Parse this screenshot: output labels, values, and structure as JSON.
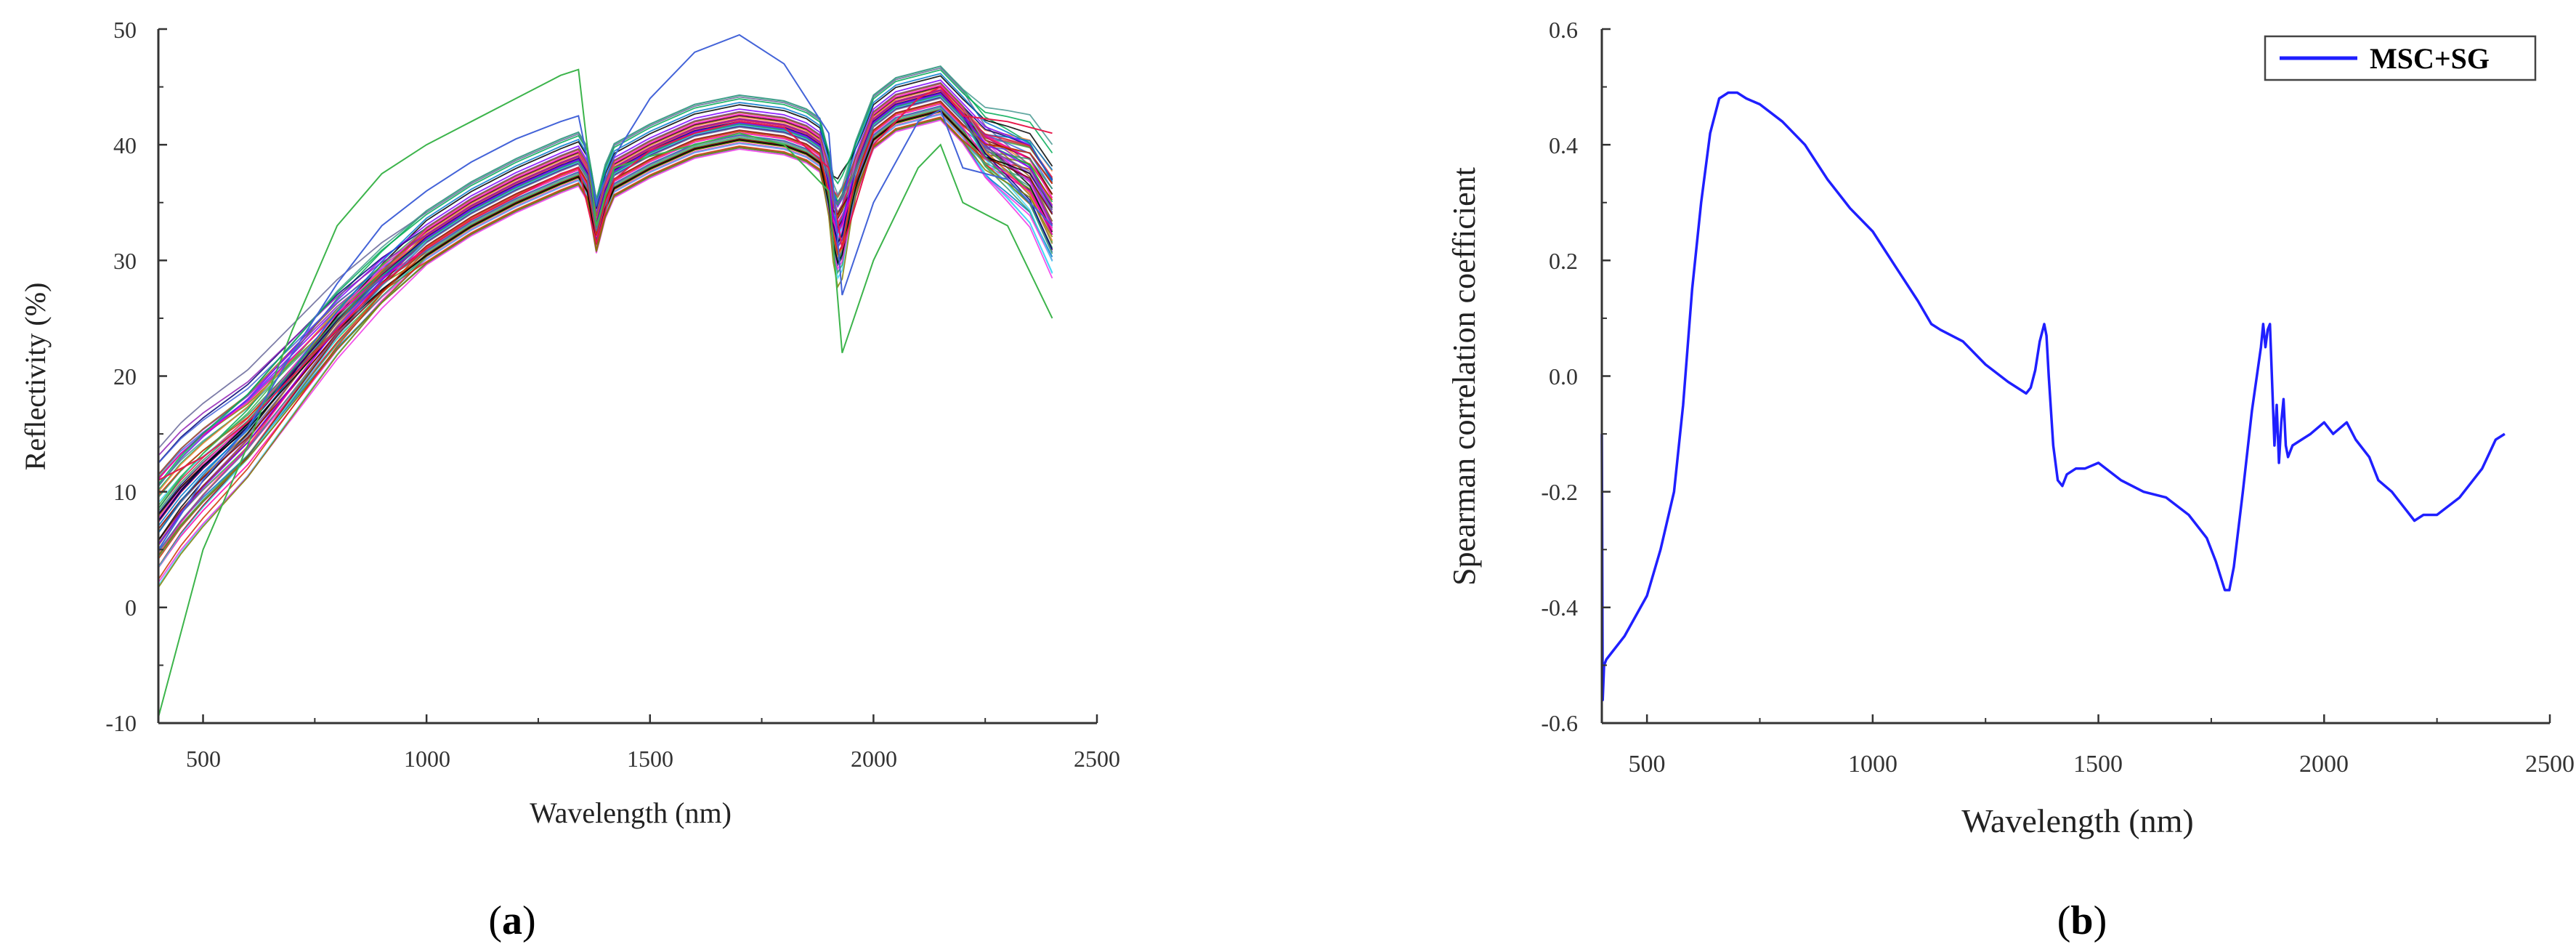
{
  "chart_data": [
    {
      "panel": "a",
      "type": "line",
      "title": "",
      "xlabel": "Wavelength (nm)",
      "ylabel": "Reflectivity (%)",
      "xlim": [
        400,
        2500
      ],
      "ylim": [
        -10,
        50
      ],
      "xticks": [
        500,
        1000,
        1500,
        2000,
        2500
      ],
      "yticks": [
        -10,
        0,
        10,
        20,
        30,
        40,
        50
      ],
      "grid": false,
      "legend": "none",
      "series_count": 60,
      "base_curve": {
        "x": [
          400,
          450,
          500,
          600,
          700,
          800,
          900,
          1000,
          1100,
          1200,
          1300,
          1340,
          1360,
          1380,
          1400,
          1420,
          1500,
          1600,
          1700,
          1800,
          1850,
          1880,
          1900,
          1915,
          1930,
          1960,
          2000,
          2050,
          2100,
          2150,
          2200,
          2250,
          2300,
          2350,
          2400
        ],
        "y": [
          8,
          10.5,
          12.5,
          16,
          20.5,
          25,
          28.8,
          32,
          34.5,
          36.5,
          38.2,
          38.8,
          37.5,
          33,
          36,
          37.8,
          39.5,
          41.2,
          42,
          41.5,
          40.8,
          40,
          37,
          33,
          34,
          38,
          42,
          43.5,
          44,
          44.5,
          42.5,
          41,
          40.8,
          40.5,
          38
        ]
      },
      "example_spectra": [
        {
          "name": "",
          "x": [
            400,
            500,
            600,
            700,
            800,
            900,
            1000,
            1100,
            1200,
            1300,
            1340,
            1380,
            1420,
            1500,
            1600,
            1700,
            1800,
            1900,
            1930,
            2000,
            2100,
            2150,
            2200,
            2300,
            2400
          ],
          "y": [
            -9.5,
            5,
            14,
            24,
            33,
            37.5,
            40,
            42,
            44,
            46,
            46.5,
            33,
            38,
            39,
            40,
            41,
            40,
            36,
            22,
            30,
            38,
            40,
            35,
            33,
            25
          ]
        },
        {
          "name": "",
          "x": [
            400,
            500,
            600,
            700,
            800,
            900,
            1000,
            1100,
            1200,
            1300,
            1340,
            1380,
            1420,
            1500,
            1600,
            1700,
            1800,
            1900,
            1930,
            2000,
            2100,
            2150,
            2200,
            2300,
            2400
          ],
          "y": [
            11,
            13,
            16,
            20,
            24,
            28,
            31,
            33.5,
            35.5,
            37.5,
            38,
            31.5,
            37,
            39.5,
            41,
            42,
            41.5,
            38,
            31,
            40,
            44,
            45,
            42.5,
            42,
            41
          ]
        },
        {
          "name": "",
          "x": [
            400,
            500,
            600,
            700,
            800,
            900,
            1000,
            1100,
            1200,
            1300,
            1340,
            1380,
            1420,
            1500,
            1600,
            1700,
            1800,
            1900,
            1930,
            2000,
            2100,
            2150,
            2200,
            2300,
            2400
          ],
          "y": [
            5,
            11,
            15.5,
            22,
            28,
            33,
            36,
            38.5,
            40.5,
            42,
            42.5,
            35,
            39,
            44,
            48,
            49.5,
            47,
            41,
            27,
            35,
            42,
            43,
            38,
            37,
            33
          ]
        }
      ]
    },
    {
      "panel": "b",
      "type": "line",
      "title": "",
      "xlabel": "Wavelength (nm)",
      "ylabel": "Spearman correlation coefficient",
      "xlim": [
        400,
        2500
      ],
      "ylim": [
        -0.6,
        0.6
      ],
      "xticks": [
        500,
        1000,
        1500,
        2000,
        2500
      ],
      "yticks": [
        -0.6,
        -0.4,
        -0.2,
        0.0,
        0.2,
        0.4,
        0.6
      ],
      "grid": false,
      "legend": "top-right",
      "series": [
        {
          "name": "MSC+SG",
          "color": "#1f1fff",
          "x": [
            400,
            402,
            405,
            410,
            420,
            450,
            500,
            530,
            560,
            580,
            600,
            620,
            640,
            660,
            680,
            700,
            720,
            750,
            800,
            850,
            900,
            950,
            1000,
            1050,
            1100,
            1130,
            1150,
            1200,
            1250,
            1300,
            1340,
            1350,
            1360,
            1370,
            1380,
            1385,
            1390,
            1400,
            1410,
            1420,
            1430,
            1450,
            1470,
            1500,
            1550,
            1600,
            1650,
            1700,
            1740,
            1760,
            1780,
            1790,
            1800,
            1820,
            1840,
            1860,
            1865,
            1870,
            1875,
            1880,
            1890,
            1895,
            1900,
            1905,
            1910,
            1915,
            1920,
            1930,
            1950,
            1970,
            2000,
            2020,
            2050,
            2070,
            2100,
            2120,
            2150,
            2170,
            2190,
            2200,
            2220,
            2250,
            2300,
            2350,
            2380,
            2400
          ],
          "y": [
            -0.1,
            -0.56,
            -0.5,
            -0.49,
            -0.48,
            -0.45,
            -0.38,
            -0.3,
            -0.2,
            -0.05,
            0.15,
            0.3,
            0.42,
            0.48,
            0.49,
            0.49,
            0.48,
            0.47,
            0.44,
            0.4,
            0.34,
            0.29,
            0.25,
            0.19,
            0.13,
            0.09,
            0.08,
            0.06,
            0.02,
            -0.01,
            -0.03,
            -0.02,
            0.01,
            0.06,
            0.09,
            0.07,
            0.0,
            -0.12,
            -0.18,
            -0.19,
            -0.17,
            -0.16,
            -0.16,
            -0.15,
            -0.18,
            -0.2,
            -0.21,
            -0.24,
            -0.28,
            -0.32,
            -0.37,
            -0.37,
            -0.33,
            -0.2,
            -0.06,
            0.05,
            0.09,
            0.05,
            0.08,
            0.09,
            -0.12,
            -0.05,
            -0.15,
            -0.08,
            -0.04,
            -0.12,
            -0.14,
            -0.12,
            -0.11,
            -0.1,
            -0.08,
            -0.1,
            -0.08,
            -0.11,
            -0.14,
            -0.18,
            -0.2,
            -0.22,
            -0.24,
            -0.25,
            -0.24,
            -0.24,
            -0.21,
            -0.16,
            -0.11,
            -0.1
          ]
        }
      ]
    }
  ],
  "panel_labels": {
    "a": {
      "open": "(",
      "letter": "a",
      "close": ")"
    },
    "b": {
      "open": "(",
      "letter": "b",
      "close": ")"
    }
  },
  "colors": {
    "axis": "#333333",
    "msc_sg_line": "#1f1fff",
    "palette_a": [
      "#e6194b",
      "#3cb44b",
      "#4363d8",
      "#f58231",
      "#911eb4",
      "#42d4f4",
      "#f032e6",
      "#000075",
      "#808000",
      "#9A6324",
      "#800000",
      "#469990",
      "#000000",
      "#ff00aa",
      "#0077cc",
      "#00aa55",
      "#7f00ff",
      "#cc3300",
      "#339966",
      "#666699"
    ]
  }
}
